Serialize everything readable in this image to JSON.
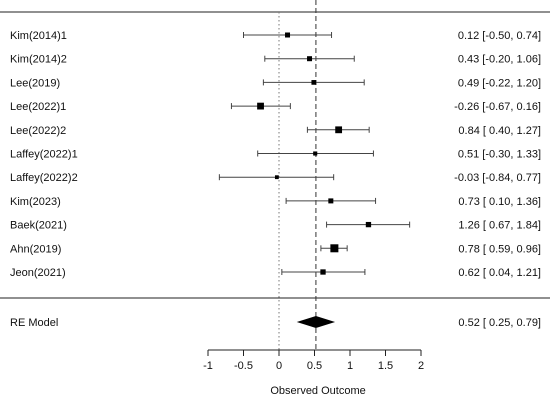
{
  "chart_data": {
    "type": "forest",
    "xlabel": "Observed Outcome",
    "xlim": [
      -1,
      2
    ],
    "xticks": [
      -1,
      -0.5,
      0,
      0.5,
      1,
      1.5,
      2
    ],
    "xtick_labels": [
      "-1",
      "-0.5",
      "0",
      "0.5",
      "1",
      "1.5",
      "2"
    ],
    "reference_lines": {
      "null_effect": 0,
      "summary_effect": 0.52
    },
    "studies": [
      {
        "label": "Kim(2014)1",
        "estimate": 0.12,
        "ci": [
          -0.5,
          0.74
        ],
        "text": "0.12 [-0.50, 0.74]",
        "weight": 0.5
      },
      {
        "label": "Kim(2014)2",
        "estimate": 0.43,
        "ci": [
          -0.2,
          1.06
        ],
        "text": "0.43 [-0.20, 1.06]",
        "weight": 0.5
      },
      {
        "label": "Lee(2019)",
        "estimate": 0.49,
        "ci": [
          -0.22,
          1.2
        ],
        "text": "0.49 [-0.22, 1.20]",
        "weight": 0.45
      },
      {
        "label": "Lee(2022)1",
        "estimate": -0.26,
        "ci": [
          -0.67,
          0.16
        ],
        "text": "-0.26 [-0.67, 0.16]",
        "weight": 0.8
      },
      {
        "label": "Lee(2022)2",
        "estimate": 0.84,
        "ci": [
          0.4,
          1.27
        ],
        "text": "0.84 [ 0.40, 1.27]",
        "weight": 0.8
      },
      {
        "label": "Laffey(2022)1",
        "estimate": 0.51,
        "ci": [
          -0.3,
          1.33
        ],
        "text": "0.51 [-0.30, 1.33]",
        "weight": 0.35
      },
      {
        "label": "Laffey(2022)2",
        "estimate": -0.03,
        "ci": [
          -0.84,
          0.77
        ],
        "text": "-0.03 [-0.84, 0.77]",
        "weight": 0.3
      },
      {
        "label": "Kim(2023)",
        "estimate": 0.73,
        "ci": [
          0.1,
          1.36
        ],
        "text": "0.73 [ 0.10, 1.36]",
        "weight": 0.5
      },
      {
        "label": "Baek(2021)",
        "estimate": 1.26,
        "ci": [
          0.67,
          1.84
        ],
        "text": "1.26 [ 0.67, 1.84]",
        "weight": 0.55
      },
      {
        "label": "Ahn(2019)",
        "estimate": 0.78,
        "ci": [
          0.59,
          0.96
        ],
        "text": "0.78 [ 0.59, 0.96]",
        "weight": 1.0
      },
      {
        "label": "Jeon(2021)",
        "estimate": 0.62,
        "ci": [
          0.04,
          1.21
        ],
        "text": "0.62 [ 0.04, 1.21]",
        "weight": 0.55
      }
    ],
    "summary": {
      "label": "RE Model",
      "estimate": 0.52,
      "ci": [
        0.25,
        0.79
      ],
      "text": "0.52 [ 0.25, 0.79]"
    }
  }
}
